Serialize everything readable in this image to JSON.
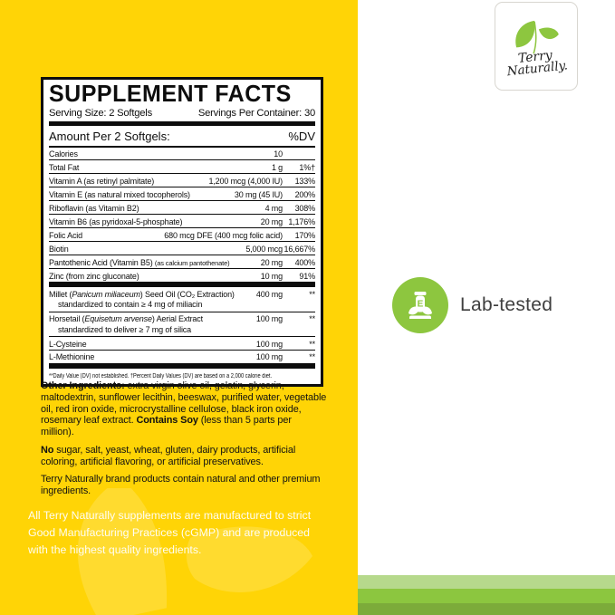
{
  "colors": {
    "yellow_background": "#ffd406",
    "brand_green": "#8dc63f",
    "stripe_light_green": "#b6d98c",
    "stripe_mid_green": "#8cc63f",
    "stripe_dark_green": "#7cab3a",
    "panel_border": "#0d0d0d",
    "label_text": "#111111",
    "badge_label_text": "#3f3f3f"
  },
  "logo": {
    "icon": "sprout-leaves-icon",
    "line1": "Terry",
    "line2": "Naturally."
  },
  "lab_badge": {
    "icon": "lab-flask-leaves-icon",
    "label": "Lab-tested"
  },
  "supplement_facts": {
    "title": "SUPPLEMENT FACTS",
    "serving_size": "Serving Size: 2 Softgels",
    "servings_per_container": "Servings Per Container: 30",
    "amount_header": "Amount Per 2 Softgels:",
    "dv_header": "%DV",
    "rows": [
      {
        "name": [
          [
            "Calories",
            "n"
          ]
        ],
        "amount": "10",
        "dv": ""
      },
      {
        "name": [
          [
            "Total Fat",
            "n"
          ]
        ],
        "amount": "1 g",
        "dv": "1%†"
      },
      {
        "name": [
          [
            "Vitamin A (as retinyl palmitate)",
            "n"
          ]
        ],
        "amount": "1,200 mcg (4,000 IU)",
        "dv": "133%"
      },
      {
        "name": [
          [
            "Vitamin E (as natural mixed tocopherols)",
            "n"
          ]
        ],
        "amount": "30 mg (45 IU)",
        "dv": "200%"
      },
      {
        "name": [
          [
            "Riboflavin (as Vitamin B2)",
            "n"
          ]
        ],
        "amount": "4 mg",
        "dv": "308%"
      },
      {
        "name": [
          [
            "Vitamin B6 (as pyridoxal-5-phosphate)",
            "n"
          ]
        ],
        "amount": "20 mg",
        "dv": "1,176%"
      },
      {
        "name": [
          [
            "Folic Acid",
            "n"
          ]
        ],
        "amount": "680 mcg DFE (400 mcg folic acid)",
        "dv": "170%"
      },
      {
        "name": [
          [
            "Biotin",
            "n"
          ]
        ],
        "amount": "5,000 mcg",
        "dv": "16,667%"
      },
      {
        "name": [
          [
            "Pantothenic Acid (Vitamin B5) ",
            "n"
          ],
          [
            "(as calcium pantothenate)",
            "s"
          ]
        ],
        "amount": "20 mg",
        "dv": "400%"
      },
      {
        "name": [
          [
            "Zinc (from zinc gluconate)",
            "n"
          ]
        ],
        "amount": "10 mg",
        "dv": "91%"
      },
      {
        "name": [
          [
            "Millet (",
            "n"
          ],
          [
            "Panicum miliaceum",
            "i"
          ],
          [
            ") Seed Oil (CO₂ Extraction)",
            "n"
          ]
        ],
        "amount": "400 mg",
        "dv": "**",
        "sub": "standardized to contain ≥ 4 mg of miliacin",
        "group_break": true
      },
      {
        "name": [
          [
            "Horsetail (",
            "n"
          ],
          [
            "Equisetum arvense",
            "i"
          ],
          [
            ") Aerial Extract",
            "n"
          ]
        ],
        "amount": "100 mg",
        "dv": "**",
        "sub": "standardized to deliver ≥ 7 mg of silica"
      },
      {
        "name": [
          [
            "L-Cysteine",
            "n"
          ]
        ],
        "amount": "100 mg",
        "dv": "**"
      },
      {
        "name": [
          [
            "L-Methionine",
            "n"
          ]
        ],
        "amount": "100 mg",
        "dv": "**"
      }
    ],
    "footnote": "**Daily Value (DV) not established.  †Percent Daily Values (DV) are based on a 2,000 calorie diet."
  },
  "paragraphs": {
    "other_ingredients_label": "Other Ingredients:",
    "other_ingredients_text": " extra virgin olive oil, gelatin, glycerin, maltodextrin, sunflower lecithin, beeswax, purified water, vegetable oil, red iron oxide, microcrystalline cellulose, black iron oxide, rosemary leaf extract. ",
    "contains_soy_label": "Contains Soy",
    "contains_soy_text": " (less than 5 parts per million).",
    "no_label": "No",
    "no_text": " sugar, salt, yeast, wheat, gluten, dairy products, artificial coloring, artificial flavoring, or artificial preservatives.",
    "brand_note": "Terry Naturally brand products contain natural and other premium ingredients."
  },
  "footer": {
    "note": "All Terry Naturally supplements are manufactured to strict Good Manufacturing Practices (cGMP) and are produced with the highest quality ingredients."
  }
}
